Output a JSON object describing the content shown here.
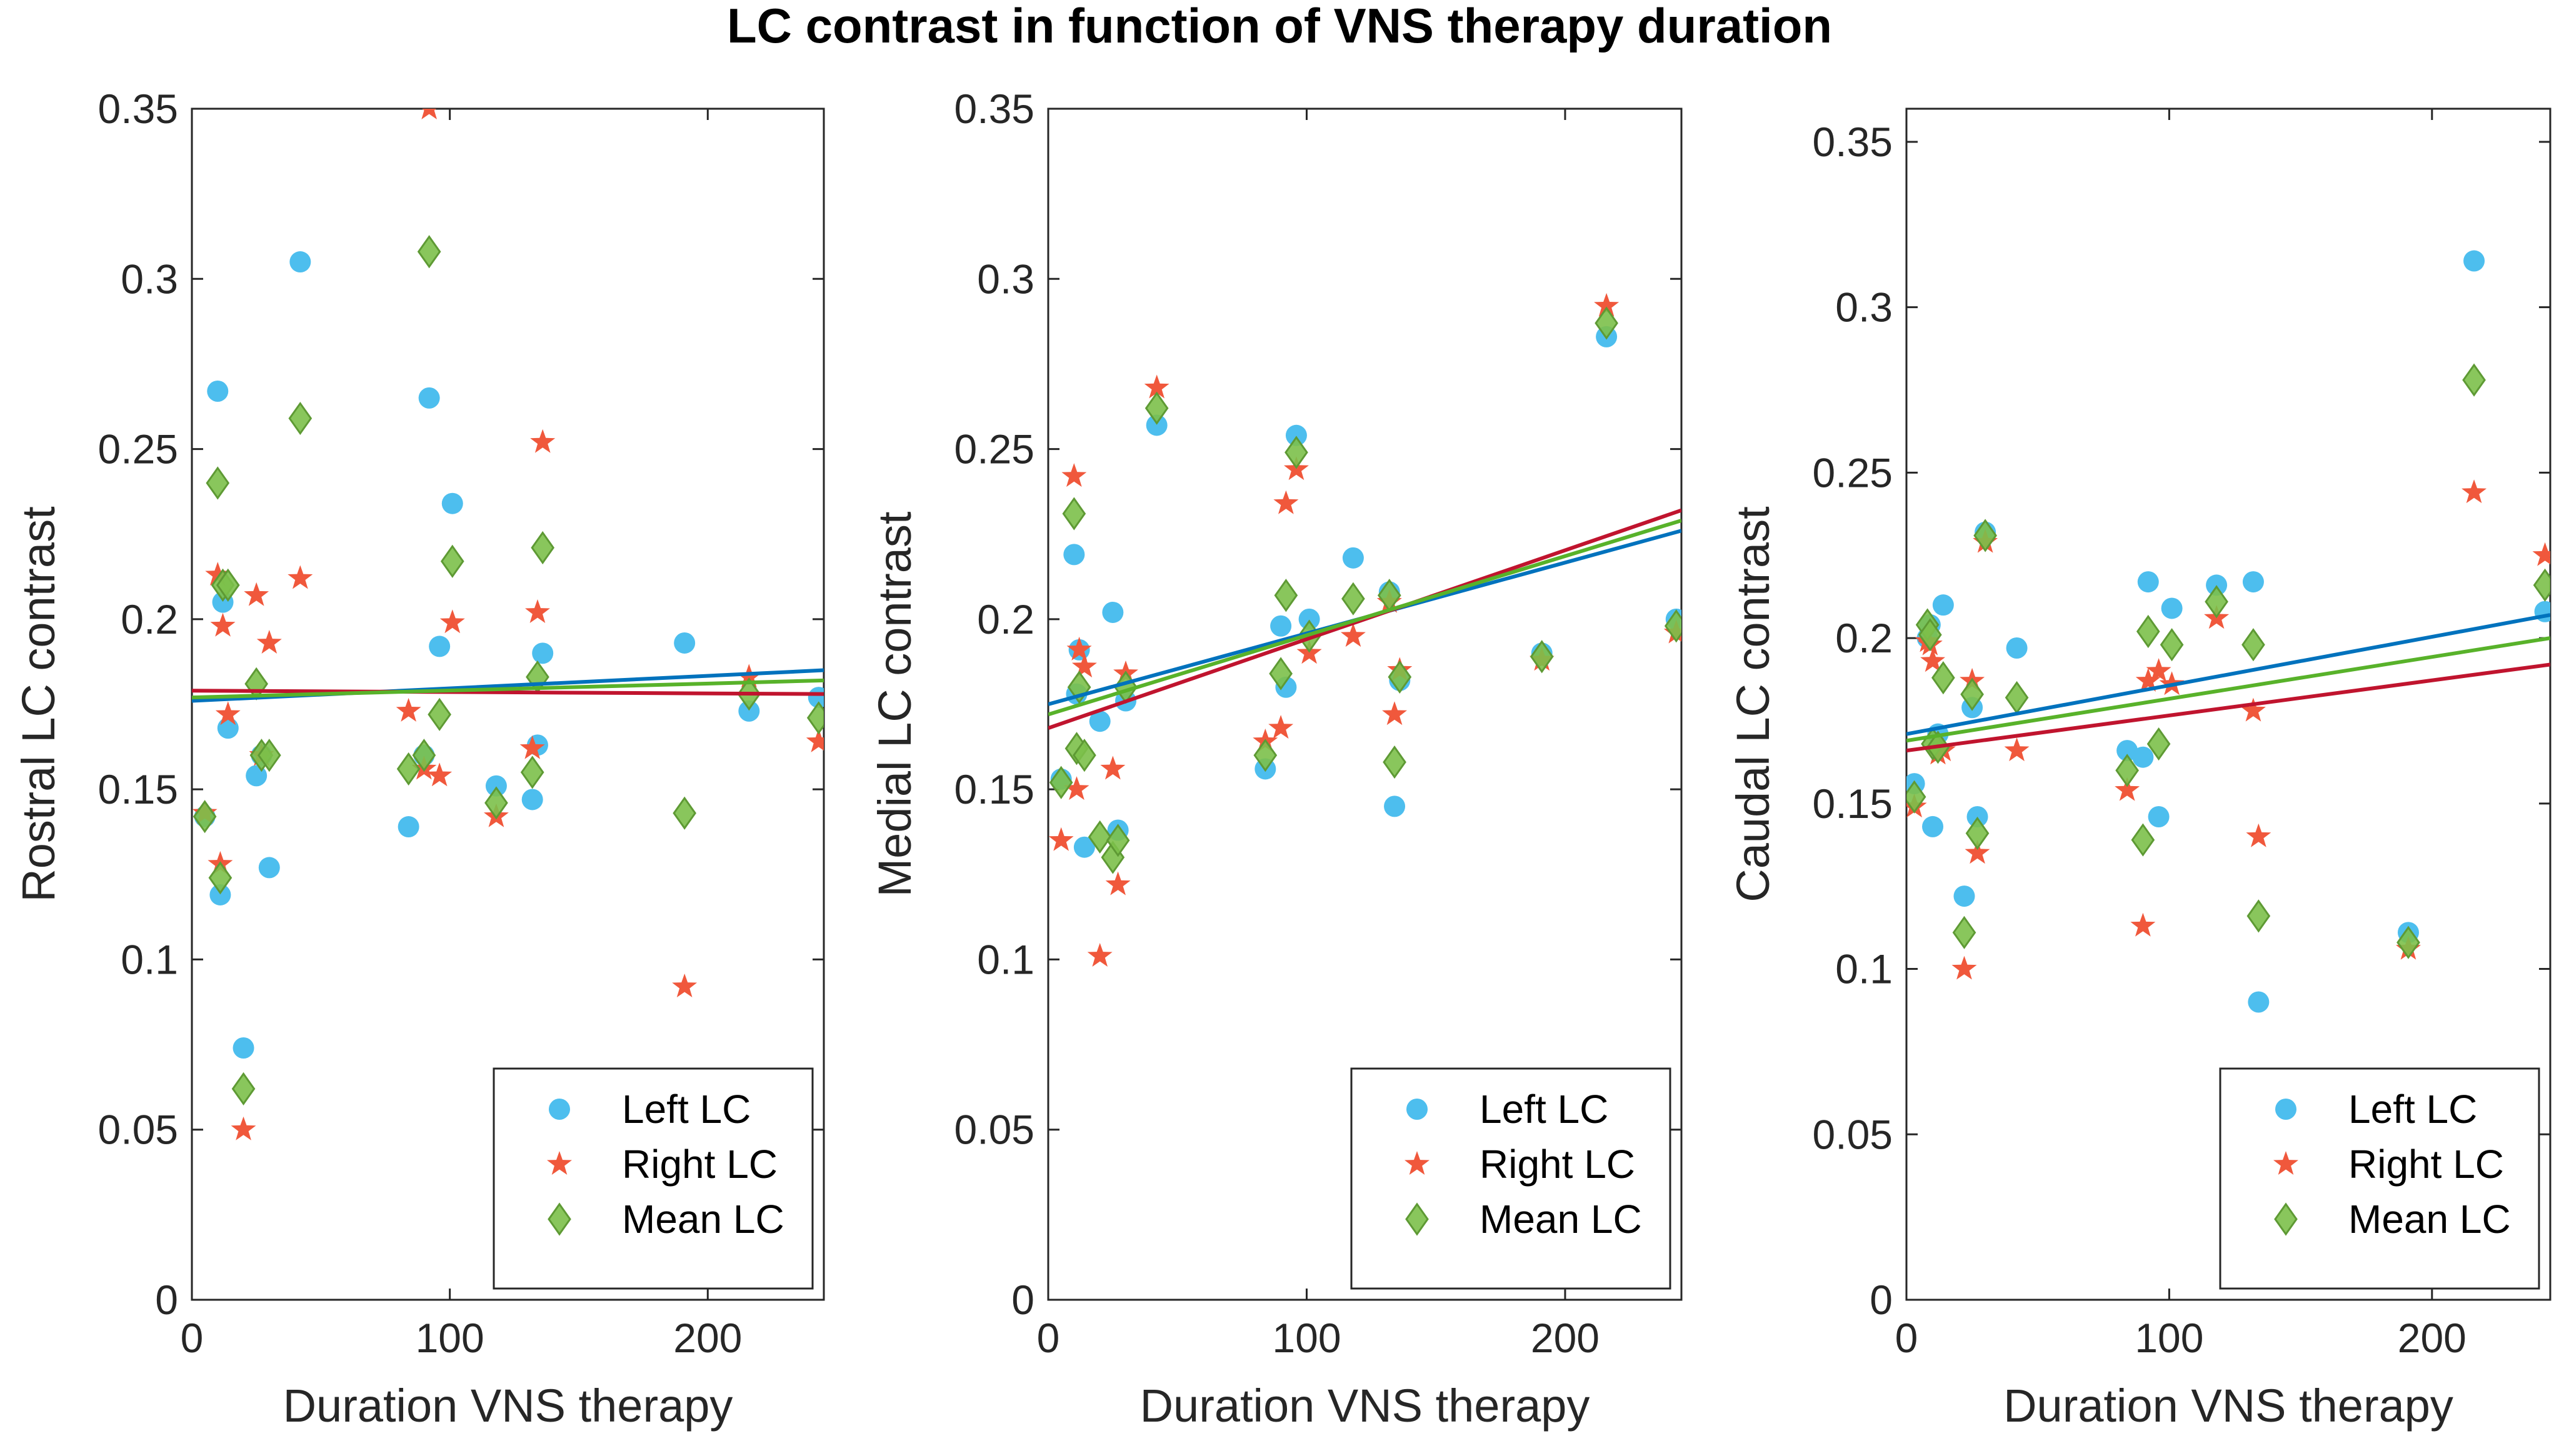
{
  "figure": {
    "title": "LC contrast in function of VNS therapy duration"
  },
  "colors": {
    "left": "#4DBEEE",
    "right": "#F0583C",
    "mean": "#7CC04A",
    "mean_edge": "#5E9A34",
    "fit_left": "#0072BD",
    "fit_right": "#C0142E",
    "fit_mean": "#58B22A"
  },
  "chart_data": [
    {
      "type": "scatter",
      "title": "",
      "xlabel": "Duration VNS therapy",
      "ylabel": "Rostral LC contrast",
      "xlim": [
        0,
        245
      ],
      "ylim": [
        0,
        0.35
      ],
      "xticks": [
        0,
        100,
        200
      ],
      "xtick_labels": [
        "0",
        "100",
        "200"
      ],
      "yticks": [
        0,
        0.05,
        0.1,
        0.15,
        0.2,
        0.25,
        0.3,
        0.35
      ],
      "ytick_labels": [
        "0",
        "0.05",
        "0.1",
        "0.15",
        "0.2",
        "0.25",
        "0.3",
        "0.35"
      ],
      "legend": {
        "position": "bottom-right",
        "entries": [
          "Left LC",
          "Right LC",
          "Mean LC"
        ]
      },
      "series": [
        {
          "name": "Left LC",
          "marker": "circle",
          "x": [
            5,
            10,
            11,
            12,
            14,
            20,
            25,
            27,
            30,
            42,
            84,
            90,
            92,
            96,
            101,
            118,
            132,
            134,
            136,
            191,
            216,
            243
          ],
          "y": [
            0.142,
            0.267,
            0.119,
            0.205,
            0.168,
            0.074,
            0.154,
            0.16,
            0.127,
            0.305,
            0.139,
            0.16,
            0.265,
            0.192,
            0.234,
            0.151,
            0.147,
            0.163,
            0.19,
            0.193,
            0.173,
            0.177
          ]
        },
        {
          "name": "Right LC",
          "marker": "star",
          "x": [
            5,
            10,
            11,
            12,
            14,
            20,
            25,
            27,
            30,
            42,
            84,
            90,
            92,
            96,
            101,
            118,
            132,
            134,
            136,
            191,
            216,
            243
          ],
          "y": [
            0.143,
            0.213,
            0.128,
            0.198,
            0.172,
            0.05,
            0.207,
            0.16,
            0.193,
            0.212,
            0.173,
            0.156,
            0.35,
            0.154,
            0.199,
            0.142,
            0.162,
            0.202,
            0.252,
            0.092,
            0.183,
            0.164
          ]
        },
        {
          "name": "Mean LC",
          "marker": "diamond",
          "x": [
            5,
            10,
            11,
            12,
            14,
            20,
            25,
            27,
            30,
            42,
            84,
            90,
            92,
            96,
            101,
            118,
            132,
            134,
            136,
            191,
            216,
            243
          ],
          "y": [
            0.142,
            0.24,
            0.124,
            0.21,
            0.21,
            0.062,
            0.181,
            0.16,
            0.16,
            0.259,
            0.156,
            0.16,
            0.308,
            0.172,
            0.217,
            0.146,
            0.155,
            0.183,
            0.221,
            0.143,
            0.178,
            0.171
          ]
        }
      ],
      "fits": [
        {
          "name": "Left LC",
          "x": [
            0,
            245
          ],
          "y": [
            0.176,
            0.185
          ]
        },
        {
          "name": "Right LC",
          "x": [
            0,
            245
          ],
          "y": [
            0.179,
            0.178
          ]
        },
        {
          "name": "Mean LC",
          "x": [
            0,
            245
          ],
          "y": [
            0.177,
            0.182
          ]
        }
      ]
    },
    {
      "type": "scatter",
      "title": "",
      "xlabel": "Duration VNS therapy",
      "ylabel": "Medial LC contrast",
      "xlim": [
        0,
        245
      ],
      "ylim": [
        0,
        0.35
      ],
      "xticks": [
        0,
        100,
        200
      ],
      "xtick_labels": [
        "0",
        "100",
        "200"
      ],
      "yticks": [
        0,
        0.05,
        0.1,
        0.15,
        0.2,
        0.25,
        0.3,
        0.35
      ],
      "ytick_labels": [
        "0",
        "0.05",
        "0.1",
        "0.15",
        "0.2",
        "0.25",
        "0.3",
        "0.35"
      ],
      "legend": {
        "position": "bottom-right",
        "entries": [
          "Left LC",
          "Right LC",
          "Mean LC"
        ]
      },
      "series": [
        {
          "name": "Left LC",
          "marker": "circle",
          "x": [
            5,
            10,
            11,
            12,
            14,
            20,
            25,
            27,
            30,
            42,
            84,
            90,
            92,
            96,
            101,
            118,
            132,
            134,
            136,
            191,
            216,
            243
          ],
          "y": [
            0.153,
            0.219,
            0.178,
            0.191,
            0.133,
            0.17,
            0.202,
            0.138,
            0.176,
            0.257,
            0.156,
            0.198,
            0.18,
            0.254,
            0.2,
            0.218,
            0.208,
            0.145,
            0.182,
            0.19,
            0.283,
            0.2
          ]
        },
        {
          "name": "Right LC",
          "marker": "star",
          "x": [
            5,
            10,
            11,
            12,
            14,
            20,
            25,
            27,
            30,
            42,
            84,
            90,
            92,
            96,
            101,
            118,
            132,
            134,
            136,
            191,
            216,
            243
          ],
          "y": [
            0.135,
            0.242,
            0.15,
            0.191,
            0.186,
            0.101,
            0.156,
            0.122,
            0.184,
            0.268,
            0.164,
            0.168,
            0.234,
            0.244,
            0.19,
            0.195,
            0.205,
            0.172,
            0.185,
            0.188,
            0.292,
            0.196
          ]
        },
        {
          "name": "Mean LC",
          "marker": "diamond",
          "x": [
            5,
            10,
            11,
            12,
            14,
            20,
            25,
            27,
            30,
            42,
            84,
            90,
            92,
            96,
            101,
            118,
            132,
            134,
            136,
            191,
            216,
            243
          ],
          "y": [
            0.152,
            0.231,
            0.162,
            0.18,
            0.16,
            0.136,
            0.13,
            0.135,
            0.18,
            0.262,
            0.16,
            0.184,
            0.207,
            0.249,
            0.195,
            0.206,
            0.207,
            0.158,
            0.183,
            0.189,
            0.287,
            0.198
          ]
        }
      ],
      "fits": [
        {
          "name": "Left LC",
          "x": [
            0,
            245
          ],
          "y": [
            0.175,
            0.226
          ]
        },
        {
          "name": "Right LC",
          "x": [
            0,
            245
          ],
          "y": [
            0.168,
            0.232
          ]
        },
        {
          "name": "Mean LC",
          "x": [
            0,
            245
          ],
          "y": [
            0.172,
            0.229
          ]
        }
      ]
    },
    {
      "type": "scatter",
      "title": "",
      "xlabel": "Duration VNS therapy",
      "ylabel": "Caudal LC contrast",
      "xlim": [
        0,
        245
      ],
      "ylim": [
        0,
        0.36
      ],
      "xticks": [
        0,
        100,
        200
      ],
      "xtick_labels": [
        "0",
        "100",
        "200"
      ],
      "yticks": [
        0,
        0.05,
        0.1,
        0.15,
        0.2,
        0.25,
        0.3,
        0.35
      ],
      "ytick_labels": [
        "0",
        "0.05",
        "0.1",
        "0.15",
        "0.2",
        "0.25",
        "0.3",
        "0.35"
      ],
      "legend": {
        "position": "bottom-right",
        "entries": [
          "Left LC",
          "Right LC",
          "Mean LC"
        ]
      },
      "series": [
        {
          "name": "Left LC",
          "marker": "circle",
          "x": [
            3,
            8,
            9,
            10,
            12,
            14,
            22,
            25,
            27,
            30,
            42,
            84,
            90,
            92,
            96,
            101,
            118,
            132,
            134,
            191,
            216,
            243
          ],
          "y": [
            0.156,
            0.2,
            0.204,
            0.143,
            0.171,
            0.21,
            0.122,
            0.179,
            0.146,
            0.232,
            0.197,
            0.166,
            0.164,
            0.217,
            0.146,
            0.209,
            0.216,
            0.217,
            0.09,
            0.111,
            0.314,
            0.208
          ]
        },
        {
          "name": "Right LC",
          "marker": "star",
          "x": [
            3,
            8,
            9,
            10,
            12,
            14,
            22,
            25,
            27,
            30,
            42,
            84,
            90,
            92,
            96,
            101,
            118,
            132,
            134,
            191,
            216,
            243
          ],
          "y": [
            0.149,
            0.199,
            0.198,
            0.193,
            0.165,
            0.166,
            0.1,
            0.187,
            0.135,
            0.229,
            0.166,
            0.154,
            0.113,
            0.187,
            0.19,
            0.186,
            0.206,
            0.178,
            0.14,
            0.106,
            0.244,
            0.225
          ]
        },
        {
          "name": "Mean LC",
          "marker": "diamond",
          "x": [
            3,
            8,
            9,
            10,
            12,
            14,
            22,
            25,
            27,
            30,
            42,
            84,
            90,
            92,
            96,
            101,
            118,
            132,
            134,
            191,
            216,
            243
          ],
          "y": [
            0.152,
            0.204,
            0.201,
            0.168,
            0.167,
            0.188,
            0.111,
            0.183,
            0.141,
            0.231,
            0.182,
            0.16,
            0.139,
            0.202,
            0.168,
            0.198,
            0.211,
            0.198,
            0.116,
            0.108,
            0.278,
            0.216
          ]
        }
      ],
      "fits": [
        {
          "name": "Left LC",
          "x": [
            0,
            245
          ],
          "y": [
            0.171,
            0.207
          ]
        },
        {
          "name": "Right LC",
          "x": [
            0,
            245
          ],
          "y": [
            0.166,
            0.192
          ]
        },
        {
          "name": "Mean LC",
          "x": [
            0,
            245
          ],
          "y": [
            0.169,
            0.2
          ]
        }
      ]
    }
  ]
}
